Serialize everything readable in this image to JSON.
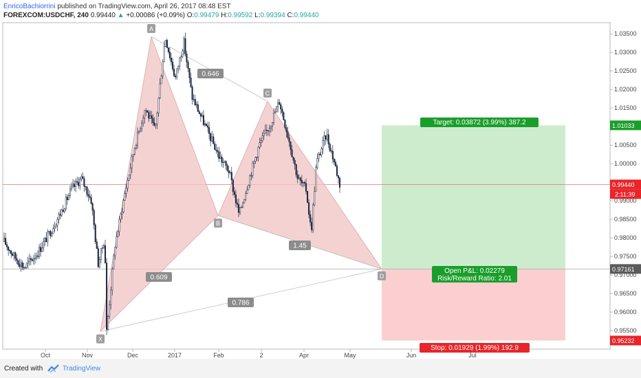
{
  "header": {
    "author": "EnricoBachiorrini",
    "published": "published on TradingView.com, April 26, 2017 08:48 EST",
    "symbol": "FOREXCOM:USDCHF, 240",
    "last": "0.99440",
    "change": "+0.00086 (+0.09%)",
    "o_label": "O:",
    "o": "0.99479",
    "h_label": "H:",
    "h": "0.99592",
    "l_label": "L:",
    "l": "0.99394",
    "c_label": "C:",
    "c": "0.99440"
  },
  "footer": {
    "created": "Created with",
    "brand": "TradingView"
  },
  "colors": {
    "bull": "#26a69a",
    "bear": "#ef5350",
    "candle": "#1f2a44",
    "pattern_fill": "#f2c3c3",
    "target_zone": "#cdeccd",
    "stop_zone": "#fbcfcf",
    "label_green": "#1a9e2b",
    "label_red": "#e8252a",
    "price_line": "#e57373"
  },
  "chart_data": {
    "type": "candlestick",
    "instrument": "FOREXCOM:USDCHF",
    "timeframe": "240",
    "x_ticks": [
      "Oct",
      "Nov",
      "Dec",
      "2017",
      "Feb",
      "2",
      "Apr",
      "May",
      "Jun",
      "Jul"
    ],
    "y_ticks": [
      "1.03500",
      "1.03000",
      "1.02500",
      "1.02000",
      "1.01500",
      "1.01000",
      "1.00500",
      "1.00000",
      "0.99500",
      "0.99000",
      "0.98500",
      "0.98000",
      "0.97500",
      "0.97000",
      "0.96500",
      "0.96000",
      "0.95500"
    ],
    "ylim": [
      0.95,
      1.038
    ],
    "price_anchors": [
      {
        "t": 0.0,
        "p": 0.979
      },
      {
        "t": 0.03,
        "p": 0.975
      },
      {
        "t": 0.06,
        "p": 0.972
      },
      {
        "t": 0.1,
        "p": 0.976
      },
      {
        "t": 0.14,
        "p": 0.982
      },
      {
        "t": 0.17,
        "p": 0.987
      },
      {
        "t": 0.2,
        "p": 0.993
      },
      {
        "t": 0.23,
        "p": 0.996
      },
      {
        "t": 0.26,
        "p": 0.99
      },
      {
        "t": 0.28,
        "p": 0.973
      },
      {
        "t": 0.3,
        "p": 0.98
      },
      {
        "t": 0.305,
        "p": 0.9545
      },
      {
        "t": 0.33,
        "p": 0.978
      },
      {
        "t": 0.36,
        "p": 0.992
      },
      {
        "t": 0.39,
        "p": 1.005
      },
      {
        "t": 0.42,
        "p": 1.015
      },
      {
        "t": 0.45,
        "p": 1.009
      },
      {
        "t": 0.48,
        "p": 1.0342
      },
      {
        "t": 0.51,
        "p": 1.023
      },
      {
        "t": 0.535,
        "p": 1.033
      },
      {
        "t": 0.56,
        "p": 1.018
      },
      {
        "t": 0.6,
        "p": 1.01
      },
      {
        "t": 0.64,
        "p": 1.002
      },
      {
        "t": 0.67,
        "p": 0.998
      },
      {
        "t": 0.7,
        "p": 0.9862
      },
      {
        "t": 0.73,
        "p": 0.996
      },
      {
        "t": 0.76,
        "p": 1.005
      },
      {
        "t": 0.79,
        "p": 1.01
      },
      {
        "t": 0.82,
        "p": 1.0168
      },
      {
        "t": 0.85,
        "p": 1.006
      },
      {
        "t": 0.875,
        "p": 0.996
      },
      {
        "t": 0.9,
        "p": 0.993
      },
      {
        "t": 0.915,
        "p": 0.9815
      },
      {
        "t": 0.93,
        "p": 1.0
      },
      {
        "t": 0.96,
        "p": 1.008
      },
      {
        "t": 0.985,
        "p": 1.0
      },
      {
        "t": 1.0,
        "p": 0.9944
      }
    ],
    "pattern": {
      "name": "harmonic",
      "points": [
        {
          "label": "X",
          "p": 0.9548
        },
        {
          "label": "A",
          "p": 1.0342
        },
        {
          "label": "B",
          "p": 0.986
        },
        {
          "label": "C",
          "p": 1.0168
        },
        {
          "label": "D",
          "p": 0.9716
        }
      ],
      "ratios": [
        "0.646",
        "1.45",
        "0.609",
        "0.786"
      ]
    },
    "position": {
      "target_price": "1.01033",
      "entry_price": "0.97161",
      "stop_price": "0.95232",
      "current_price": "0.99440",
      "countdown": "2:11:39",
      "target_label": "Target: 0.03872 (3.99%) 387.2",
      "pl_label": "Open P&L: 0.02279",
      "rr_label": "Risk/Reward Ratio: 2.01",
      "stop_label": "Stop: 0.01929 (1.99%) 192.9"
    }
  }
}
